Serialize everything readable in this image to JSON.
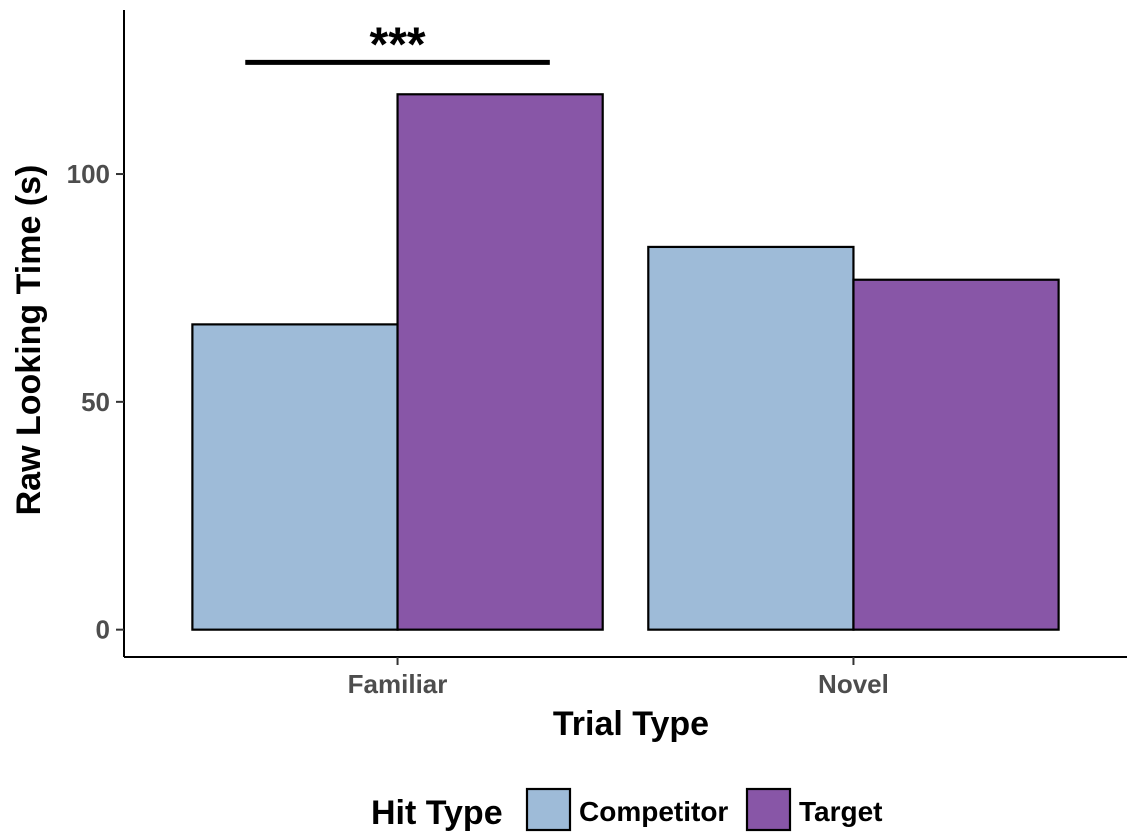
{
  "chart_data": {
    "type": "bar",
    "title": "",
    "xlabel": "Trial Type",
    "ylabel": "Raw Looking Time (s)",
    "categories": [
      "Familiar",
      "Novel"
    ],
    "series": [
      {
        "name": "Competitor",
        "values": [
          67,
          84
        ],
        "color": "#9ebbd8"
      },
      {
        "name": "Target",
        "values": [
          117.5,
          76.8
        ],
        "color": "#8856a7"
      }
    ],
    "ylim": [
      -6,
      136
    ],
    "yticks": [
      0,
      50,
      100
    ],
    "grid": false,
    "legend": {
      "title": "Hit Type",
      "position": "bottom"
    },
    "annotations": [
      {
        "text": "***",
        "category": "Familiar",
        "y": 124.5,
        "type": "significance-bracket"
      }
    ]
  }
}
